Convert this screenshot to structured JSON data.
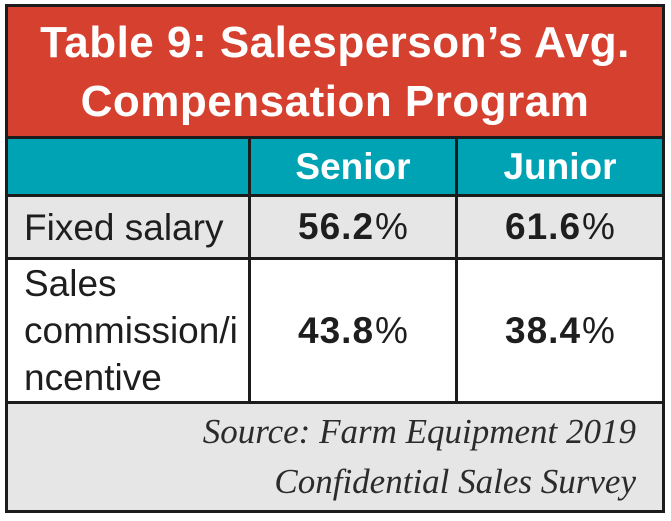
{
  "chart_data": {
    "type": "table",
    "title": "Table 9: Salesperson’s Avg. Compensation Program",
    "columns": [
      "",
      "Senior",
      "Junior"
    ],
    "categories": [
      "Fixed salary",
      "Sales commission/incentive"
    ],
    "series": [
      {
        "name": "Senior",
        "values": [
          56.2,
          43.8
        ]
      },
      {
        "name": "Junior",
        "values": [
          61.6,
          38.4
        ]
      }
    ],
    "rows": [
      [
        "Fixed salary",
        "56.2%",
        "61.6%"
      ],
      [
        "Sales commission/incentive",
        "43.8%",
        "38.4%"
      ]
    ],
    "source": "Source: Farm Equipment 2019 Confidential Sales Survey"
  },
  "title": {
    "lines": [
      "Table 9: Salesperson’s Avg.",
      "Compensation Program"
    ]
  },
  "header": {
    "corner": "",
    "columns": [
      "Senior",
      "Junior"
    ]
  },
  "rows": [
    {
      "label": "Fixed salary",
      "senior": {
        "num": "56.2",
        "pct": "%"
      },
      "junior": {
        "num": "61.6",
        "pct": "%"
      }
    },
    {
      "label": "Sales commission/incentive",
      "senior": {
        "num": "43.8",
        "pct": "%"
      },
      "junior": {
        "num": "38.4",
        "pct": "%"
      }
    }
  ],
  "footer": {
    "lines": [
      "Source: Farm Equipment 2019",
      "Confidential Sales Survey"
    ]
  },
  "colors": {
    "banner_red": "#d5402f",
    "header_teal": "#00a3b4",
    "row_gray": "#e6e6e6",
    "row_white": "#ffffff",
    "grid_black": "#1c1c1c",
    "text_black": "#1e1e1e",
    "text_white": "#ffffff"
  }
}
